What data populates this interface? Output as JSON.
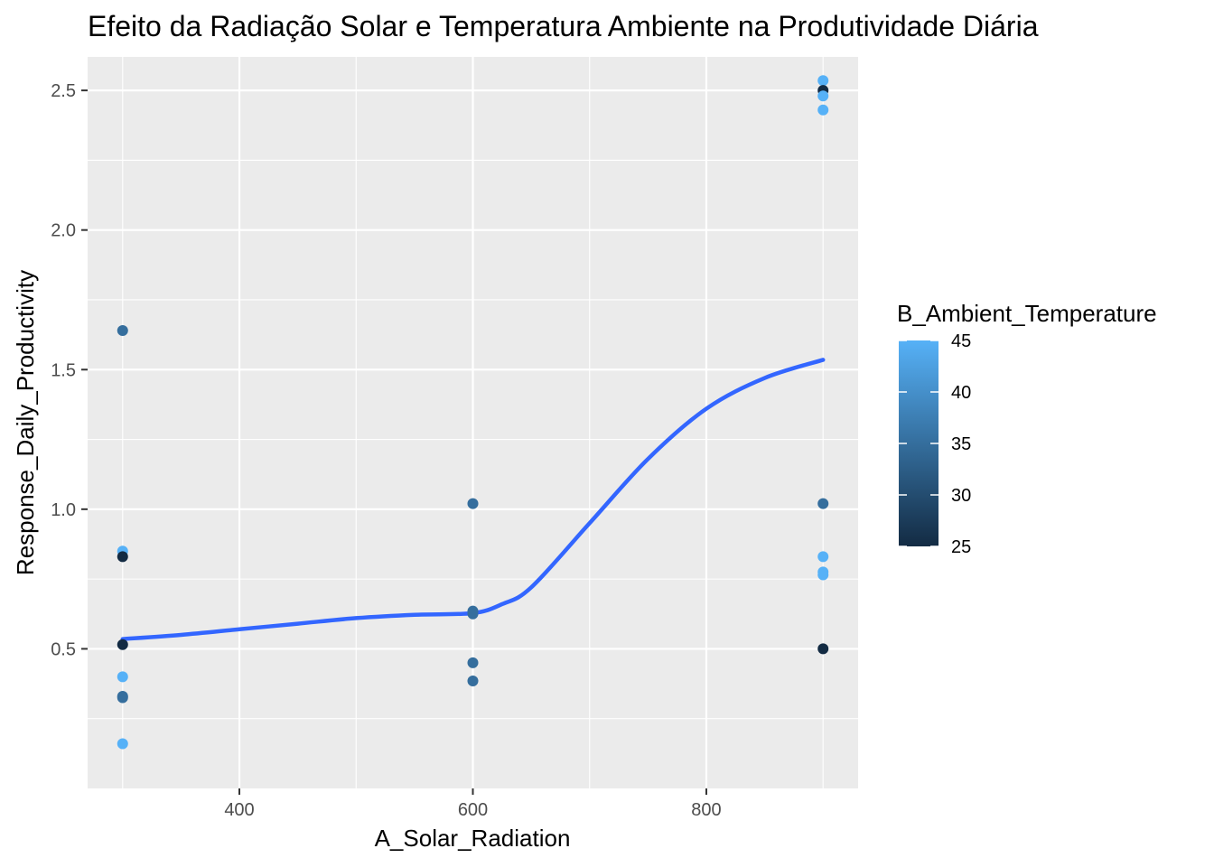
{
  "chart_data": {
    "type": "scatter",
    "title": "Efeito da Radiação Solar e Temperatura Ambiente na Produtividade Diária",
    "xlabel": "A_Solar_Radiation",
    "ylabel": "Response_Daily_Productivity",
    "xlim": [
      270,
      930
    ],
    "ylim": [
      0.0,
      2.62
    ],
    "x_ticks": [
      400,
      600,
      800
    ],
    "x_tick_labels": [
      "400",
      "600",
      "800"
    ],
    "y_ticks": [
      0.5,
      1.0,
      1.5,
      2.0,
      2.5
    ],
    "y_tick_labels": [
      "0.5",
      "1.0",
      "1.5",
      "2.0",
      "2.5"
    ],
    "grid": true,
    "color_legend": {
      "title": "B_Ambient_Temperature",
      "min": 25,
      "max": 45,
      "ticks": [
        25,
        30,
        35,
        40,
        45
      ],
      "tick_labels": [
        "25",
        "30",
        "35",
        "40",
        "45"
      ],
      "color_low": "#132B43",
      "color_high": "#56B1F7",
      "placement": "right"
    },
    "points": [
      {
        "x": 300,
        "y": 1.64,
        "temp": 35
      },
      {
        "x": 300,
        "y": 0.85,
        "temp": 45
      },
      {
        "x": 300,
        "y": 0.83,
        "temp": 25
      },
      {
        "x": 300,
        "y": 0.515,
        "temp": 25
      },
      {
        "x": 300,
        "y": 0.4,
        "temp": 45
      },
      {
        "x": 300,
        "y": 0.33,
        "temp": 35
      },
      {
        "x": 300,
        "y": 0.325,
        "temp": 35
      },
      {
        "x": 300,
        "y": 0.16,
        "temp": 45
      },
      {
        "x": 600,
        "y": 1.02,
        "temp": 35
      },
      {
        "x": 600,
        "y": 0.635,
        "temp": 35
      },
      {
        "x": 600,
        "y": 0.625,
        "temp": 35
      },
      {
        "x": 600,
        "y": 0.45,
        "temp": 35
      },
      {
        "x": 600,
        "y": 0.385,
        "temp": 35
      },
      {
        "x": 900,
        "y": 2.535,
        "temp": 45
      },
      {
        "x": 900,
        "y": 2.5,
        "temp": 25
      },
      {
        "x": 900,
        "y": 2.48,
        "temp": 45
      },
      {
        "x": 900,
        "y": 2.43,
        "temp": 45
      },
      {
        "x": 900,
        "y": 1.02,
        "temp": 35
      },
      {
        "x": 900,
        "y": 0.83,
        "temp": 45
      },
      {
        "x": 900,
        "y": 0.775,
        "temp": 45
      },
      {
        "x": 900,
        "y": 0.765,
        "temp": 45
      },
      {
        "x": 900,
        "y": 0.5,
        "temp": 25
      }
    ],
    "smooth_line": {
      "color": "#3366FF",
      "x": [
        300,
        350,
        400,
        450,
        500,
        550,
        600,
        625,
        650,
        700,
        750,
        800,
        850,
        900
      ],
      "y": [
        0.535,
        0.55,
        0.57,
        0.59,
        0.61,
        0.622,
        0.628,
        0.66,
        0.72,
        0.95,
        1.18,
        1.36,
        1.47,
        1.535
      ]
    }
  }
}
